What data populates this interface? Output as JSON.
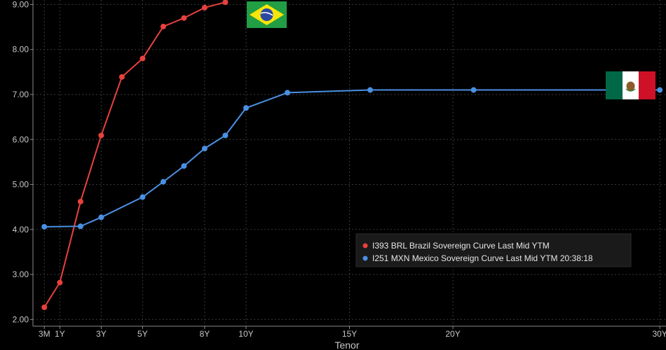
{
  "chart_data": {
    "type": "line",
    "title": "",
    "xlabel": "Tenor",
    "ylabel": "",
    "ylim": [
      1.85,
      9.1
    ],
    "xlim": [
      -0.3,
      30.3
    ],
    "grid": true,
    "legend_position": "lower-right",
    "y_ticks": [
      {
        "value": 2,
        "label": "2.00"
      },
      {
        "value": 3,
        "label": "3.00"
      },
      {
        "value": 4,
        "label": "4.00"
      },
      {
        "value": 5,
        "label": "5.00"
      },
      {
        "value": 6,
        "label": "6.00"
      },
      {
        "value": 7,
        "label": "7.00"
      },
      {
        "value": 8,
        "label": "8.00"
      },
      {
        "value": 9,
        "label": "9.00"
      }
    ],
    "x_ticks": [
      {
        "value": 0.25,
        "label": "3M"
      },
      {
        "value": 1,
        "label": "1Y"
      },
      {
        "value": 3,
        "label": "3Y"
      },
      {
        "value": 5,
        "label": "5Y"
      },
      {
        "value": 8,
        "label": "8Y"
      },
      {
        "value": 10,
        "label": "10Y"
      },
      {
        "value": 15,
        "label": "15Y"
      },
      {
        "value": 20,
        "label": "20Y"
      },
      {
        "value": 30,
        "label": "30Y"
      }
    ],
    "series": [
      {
        "name": "I393 BRL Brazil Sovereign Curve Last Mid YTM",
        "color": "#e8413c",
        "x": [
          0.25,
          1,
          2,
          3,
          4,
          5,
          6,
          7,
          8,
          9
        ],
        "y": [
          2.27,
          2.82,
          4.62,
          6.09,
          7.39,
          7.8,
          8.51,
          8.7,
          8.93,
          9.05
        ],
        "flag_icon": "brazil-flag-icon"
      },
      {
        "name": "I251 MXN Mexico Sovereign Curve Last Mid YTM 20:38:18",
        "color": "#4a90e2",
        "x": [
          0.25,
          2,
          3,
          5,
          6,
          7,
          8,
          9,
          10,
          12,
          16,
          21,
          30
        ],
        "y": [
          4.06,
          4.07,
          4.27,
          4.72,
          5.06,
          5.41,
          5.8,
          6.09,
          6.7,
          7.04,
          7.1,
          7.1,
          7.1
        ],
        "flag_icon": "mexico-flag-icon"
      }
    ]
  }
}
